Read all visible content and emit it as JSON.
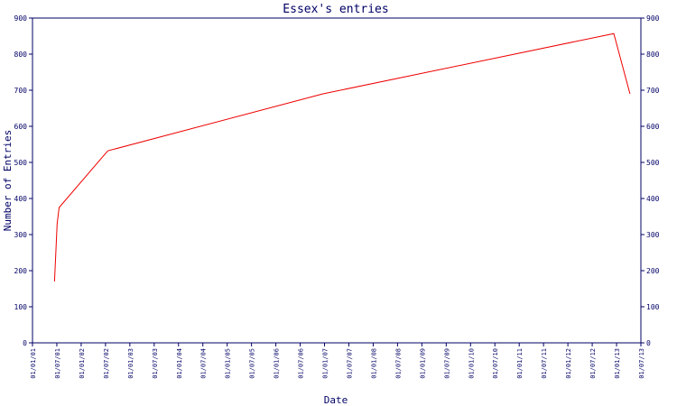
{
  "chart_data": {
    "type": "line",
    "title": "Essex's entries",
    "xlabel": "Date",
    "ylabel": "Number of Entries",
    "x_tick_labels": [
      "01/01/01",
      "01/07/01",
      "01/01/02",
      "01/07/02",
      "01/01/03",
      "01/07/03",
      "01/01/04",
      "01/07/04",
      "01/01/05",
      "01/07/05",
      "01/01/06",
      "01/07/06",
      "01/01/07",
      "01/07/07",
      "01/01/08",
      "01/07/08",
      "01/01/09",
      "01/07/09",
      "01/01/10",
      "01/07/10",
      "01/01/11",
      "01/07/11",
      "01/01/12",
      "01/07/12",
      "01/01/13",
      "01/07/13"
    ],
    "y_ticks": [
      0,
      100,
      200,
      300,
      400,
      500,
      600,
      700,
      800,
      900
    ],
    "ylim": [
      0,
      900
    ],
    "xlim": [
      "2001-01-01",
      "2013-07-01"
    ],
    "series": [
      {
        "color": "#ee0000",
        "points": [
          {
            "x": "2001-06-15",
            "y": 170
          },
          {
            "x": "2001-07-05",
            "y": 330
          },
          {
            "x": "2001-07-20",
            "y": 375
          },
          {
            "x": "2002-07-20",
            "y": 532
          },
          {
            "x": "2006-12-20",
            "y": 690
          },
          {
            "x": "2012-12-10",
            "y": 857
          },
          {
            "x": "2013-04-10",
            "y": 690
          }
        ]
      }
    ],
    "grid": false,
    "colors": {
      "axis": "#000066",
      "line": "#ee0000",
      "background": "#ffffff"
    }
  }
}
